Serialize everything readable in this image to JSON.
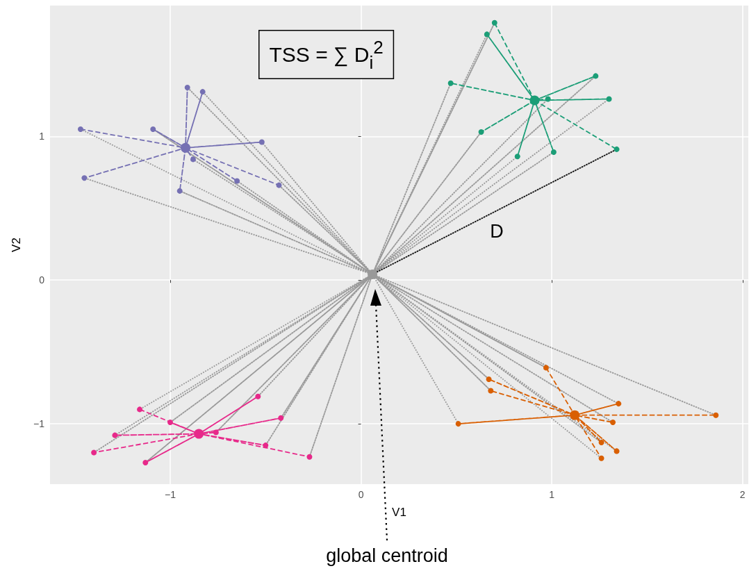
{
  "chart_data": {
    "type": "scatter",
    "xlabel": "V1",
    "ylabel": "V2",
    "xlim": [
      -1.63,
      2.03
    ],
    "ylim": [
      -1.42,
      1.91
    ],
    "xticks": [
      {
        "value": -1,
        "label": "−1"
      },
      0,
      1,
      2
    ],
    "yticks": [
      {
        "value": -1,
        "label": "−1"
      },
      0,
      1
    ],
    "grid": true,
    "legend": false,
    "annotations": [
      "TSS = ∑ D$_{i}$$^{2}$",
      "D",
      "global centroid"
    ],
    "series": [
      {
        "type": "line",
        "color": "#999999",
        "line_style": "dotted",
        "marker": "none",
        "x": [
          -1.47,
          0.06,
          -1.09,
          0.06,
          -0.91,
          0.06,
          -0.83,
          0.06,
          -0.52,
          0.06,
          -1.45,
          0.06,
          -0.88,
          0.06,
          -0.95,
          0.06,
          -0.65,
          0.06,
          -0.43,
          0.06,
          0.7,
          0.06,
          0.66,
          0.06,
          0.47,
          0.06,
          1.23,
          0.06,
          1.3,
          0.06,
          0.98,
          0.06,
          0.63,
          0.06,
          0.82,
          0.06,
          1.01,
          0.06,
          1.34,
          0.06,
          -1.16,
          0.06,
          -1.0,
          0.06,
          -1.29,
          0.06,
          -1.4,
          0.06,
          -1.13,
          0.06,
          -0.54,
          0.06,
          -0.42,
          0.06,
          -0.76,
          0.06,
          -0.5,
          0.06,
          -0.27,
          0.06,
          0.97,
          0.06,
          0.67,
          0.06,
          0.68,
          0.06,
          0.51,
          0.06,
          1.35,
          0.06,
          1.32,
          0.06,
          1.86,
          0.06,
          1.26,
          0.06,
          1.34,
          0.06,
          1.26
        ],
        "values": [
          1.05,
          0.04,
          1.05,
          0.04,
          1.34,
          0.04,
          1.31,
          0.04,
          0.96,
          0.04,
          0.71,
          0.04,
          0.84,
          0.04,
          0.62,
          0.04,
          0.69,
          0.04,
          0.66,
          0.04,
          1.79,
          0.04,
          1.71,
          0.04,
          1.37,
          0.04,
          1.42,
          0.04,
          1.26,
          0.04,
          1.26,
          0.04,
          1.03,
          0.04,
          0.86,
          0.04,
          0.89,
          0.04,
          0.91,
          0.04,
          -0.9,
          0.04,
          -0.99,
          0.04,
          -1.08,
          0.04,
          -1.2,
          0.04,
          -1.27,
          0.04,
          -0.81,
          0.04,
          -0.96,
          0.04,
          -1.06,
          0.04,
          -1.15,
          0.04,
          -1.23,
          0.04,
          -0.61,
          0.04,
          -0.69,
          0.04,
          -0.77,
          0.04,
          -1.0,
          0.04,
          -0.86,
          0.04,
          -0.99,
          0.04,
          -0.94,
          0.04,
          -1.13,
          0.04,
          -1.19,
          0.04,
          -1.24
        ]
      },
      {
        "type": "line",
        "color": "#7570b3",
        "line_style": "dashed",
        "marker": "none",
        "x": [
          -1.47,
          -0.92,
          -1.09,
          -0.92,
          -0.91,
          -0.92,
          -0.83,
          -0.92,
          -0.52,
          -0.92,
          -1.45,
          -0.92,
          -0.88,
          -0.92,
          -0.95,
          -0.92,
          -0.65,
          -0.92,
          -0.43
        ],
        "values": [
          1.05,
          0.92,
          1.05,
          0.92,
          1.34,
          0.92,
          1.31,
          0.92,
          0.96,
          0.92,
          0.71,
          0.92,
          0.84,
          0.92,
          0.62,
          0.92,
          0.69,
          0.92,
          0.66
        ]
      },
      {
        "type": "line",
        "color": "#1b9e77",
        "line_style": "dashed",
        "marker": "none",
        "x": [
          0.7,
          0.91,
          0.66,
          0.91,
          0.47,
          0.91,
          1.23,
          0.91,
          1.3,
          0.91,
          0.98,
          0.91,
          0.63,
          0.91,
          0.82,
          0.91,
          1.01,
          0.91,
          1.34
        ],
        "values": [
          1.79,
          1.25,
          1.71,
          1.25,
          1.37,
          1.25,
          1.42,
          1.25,
          1.26,
          1.25,
          1.26,
          1.25,
          1.03,
          1.25,
          0.86,
          1.25,
          0.89,
          1.25,
          0.91
        ]
      },
      {
        "type": "line",
        "color": "#e7298a",
        "line_style": "dashed",
        "marker": "none",
        "x": [
          -1.16,
          -0.85,
          -1.0,
          -0.85,
          -1.29,
          -0.85,
          -1.4,
          -0.85,
          -1.13,
          -0.85,
          -0.54,
          -0.85,
          -0.42,
          -0.85,
          -0.76,
          -0.85,
          -0.5,
          -0.85,
          -0.27
        ],
        "values": [
          -0.9,
          -1.07,
          -0.99,
          -1.07,
          -1.08,
          -1.07,
          -1.2,
          -1.07,
          -1.27,
          -1.07,
          -0.81,
          -1.07,
          -0.96,
          -1.07,
          -1.06,
          -1.07,
          -1.15,
          -1.07,
          -1.23
        ]
      },
      {
        "type": "line",
        "color": "#d95f02",
        "line_style": "dashed",
        "marker": "none",
        "x": [
          0.97,
          1.12,
          0.67,
          1.12,
          0.68,
          1.12,
          0.51,
          1.12,
          1.35,
          1.12,
          1.32,
          1.12,
          1.86,
          1.12,
          1.26,
          1.12,
          1.34,
          1.12,
          1.26
        ],
        "values": [
          -0.61,
          -0.94,
          -0.69,
          -0.94,
          -0.77,
          -0.94,
          -1.0,
          -0.94,
          -0.86,
          -0.94,
          -0.99,
          -0.94,
          -0.94,
          -0.94,
          -1.13,
          -0.94,
          -1.19,
          -0.94,
          -1.24
        ]
      },
      {
        "type": "line",
        "color": "#000000",
        "line_style": "dotted",
        "marker": "none",
        "x": [
          0.06,
          1.34
        ],
        "values": [
          0.04,
          0.91
        ]
      },
      {
        "color": "#7570b3",
        "marker": "circle",
        "x": [
          -1.47,
          -1.09,
          -0.91,
          -0.83,
          -0.52,
          -1.45,
          -0.88,
          -0.95,
          -0.65,
          -0.43
        ],
        "values": [
          1.05,
          1.05,
          1.34,
          1.31,
          0.96,
          0.71,
          0.84,
          0.62,
          0.69,
          0.66
        ]
      },
      {
        "color": "#1b9e77",
        "marker": "circle",
        "x": [
          0.7,
          0.66,
          0.47,
          1.23,
          1.3,
          0.98,
          0.63,
          0.82,
          1.01,
          1.34
        ],
        "values": [
          1.79,
          1.71,
          1.37,
          1.42,
          1.26,
          1.26,
          1.03,
          0.86,
          0.89,
          0.91
        ]
      },
      {
        "color": "#e7298a",
        "marker": "circle",
        "x": [
          -1.16,
          -1.0,
          -1.29,
          -1.4,
          -1.13,
          -0.54,
          -0.42,
          -0.76,
          -0.5,
          -0.27
        ],
        "values": [
          -0.9,
          -0.99,
          -1.08,
          -1.2,
          -1.27,
          -0.81,
          -0.96,
          -1.06,
          -1.15,
          -1.23
        ]
      },
      {
        "color": "#d95f02",
        "marker": "circle",
        "x": [
          0.97,
          0.67,
          0.68,
          0.51,
          1.35,
          1.32,
          1.86,
          1.26,
          1.34,
          1.26
        ],
        "values": [
          -0.61,
          -0.69,
          -0.77,
          -1.0,
          -0.86,
          -0.99,
          -0.94,
          -1.13,
          -1.19,
          -1.24
        ]
      },
      {
        "color": "#7570b3",
        "marker": "circle",
        "x": [
          -0.92
        ],
        "values": [
          0.92
        ]
      },
      {
        "color": "#1b9e77",
        "marker": "circle",
        "x": [
          0.91
        ],
        "values": [
          1.25
        ]
      },
      {
        "color": "#e7298a",
        "marker": "circle",
        "x": [
          -0.85
        ],
        "values": [
          -1.07
        ]
      },
      {
        "color": "#d95f02",
        "marker": "circle",
        "x": [
          1.12
        ],
        "values": [
          -0.94
        ]
      },
      {
        "color": "#999999",
        "marker": "circle",
        "x": [
          0.06
        ],
        "values": [
          0.04
        ]
      }
    ]
  }
}
